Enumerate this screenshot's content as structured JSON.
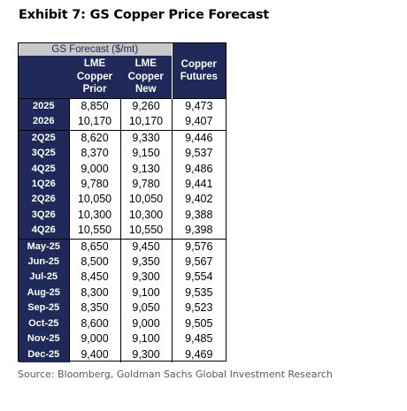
{
  "title": "Exhibit 7: GS Copper Price Forecast",
  "table": {
    "group_header": "GS Forecast ($/mt)",
    "col_prior": [
      "LME",
      "Copper",
      "Prior"
    ],
    "col_new": [
      "LME",
      "Copper",
      "New"
    ],
    "col_futures": [
      "Copper",
      "Futures"
    ],
    "groups": [
      {
        "rows": [
          {
            "label": "2025",
            "prior": "8,850",
            "new": "9,260",
            "futures": "9,473"
          },
          {
            "label": "2026",
            "prior": "10,170",
            "new": "10,170",
            "futures": "9,407"
          }
        ]
      },
      {
        "rows": [
          {
            "label": "2Q25",
            "prior": "8,620",
            "new": "9,330",
            "futures": "9,446"
          },
          {
            "label": "3Q25",
            "prior": "8,370",
            "new": "9,150",
            "futures": "9,537"
          },
          {
            "label": "4Q25",
            "prior": "9,000",
            "new": "9,130",
            "futures": "9,486"
          },
          {
            "label": "1Q26",
            "prior": "9,780",
            "new": "9,780",
            "futures": "9,441"
          },
          {
            "label": "2Q26",
            "prior": "10,050",
            "new": "10,050",
            "futures": "9,402"
          },
          {
            "label": "3Q26",
            "prior": "10,300",
            "new": "10,300",
            "futures": "9,388"
          },
          {
            "label": "4Q26",
            "prior": "10,550",
            "new": "10,550",
            "futures": "9,398"
          }
        ]
      },
      {
        "rows": [
          {
            "label": "May-25",
            "prior": "8,650",
            "new": "9,450",
            "futures": "9,576"
          },
          {
            "label": "Jun-25",
            "prior": "8,500",
            "new": "9,350",
            "futures": "9,567"
          },
          {
            "label": "Jul-25",
            "prior": "8,450",
            "new": "9,300",
            "futures": "9,554"
          },
          {
            "label": "Aug-25",
            "prior": "8,300",
            "new": "9,100",
            "futures": "9,535"
          },
          {
            "label": "Sep-25",
            "prior": "8,350",
            "new": "9,050",
            "futures": "9,523"
          },
          {
            "label": "Oct-25",
            "prior": "8,600",
            "new": "9,000",
            "futures": "9,505"
          },
          {
            "label": "Nov-25",
            "prior": "9,000",
            "new": "9,100",
            "futures": "9,485"
          },
          {
            "label": "Dec-25",
            "prior": "9,400",
            "new": "9,300",
            "futures": "9,469"
          }
        ]
      }
    ]
  },
  "source": "Source: Bloomberg, Goldman Sachs Global Investment Research",
  "colors": {
    "navy": "#1f2a5a",
    "header_gray": "#c8c8c8",
    "source_text": "#5a5a5a"
  }
}
